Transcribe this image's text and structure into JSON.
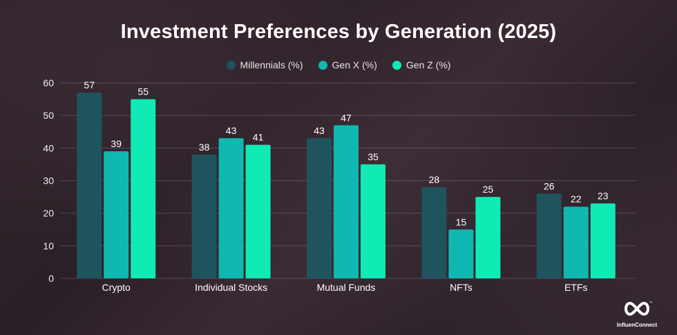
{
  "chart_data": {
    "type": "bar",
    "title": "Investment Preferences by Generation (2025)",
    "xlabel": "",
    "ylabel": "",
    "ylim": [
      0,
      60
    ],
    "yticks": [
      0,
      10,
      20,
      30,
      40,
      50,
      60
    ],
    "grid": true,
    "legend_position": "top-center",
    "categories": [
      "Crypto",
      "Individual Stocks",
      "Mutual Funds",
      "NFTs",
      "ETFs"
    ],
    "series": [
      {
        "name": "Millennials (%)",
        "color": "#1f535e",
        "values": [
          57,
          38,
          43,
          28,
          26
        ]
      },
      {
        "name": "Gen X (%)",
        "color": "#0fb9b1",
        "values": [
          39,
          43,
          47,
          15,
          22
        ]
      },
      {
        "name": "Gen Z (%)",
        "color": "#10eab4",
        "values": [
          55,
          41,
          35,
          25,
          23
        ]
      }
    ]
  },
  "brand": {
    "name": "InfluenConnect",
    "tm": "TM"
  }
}
